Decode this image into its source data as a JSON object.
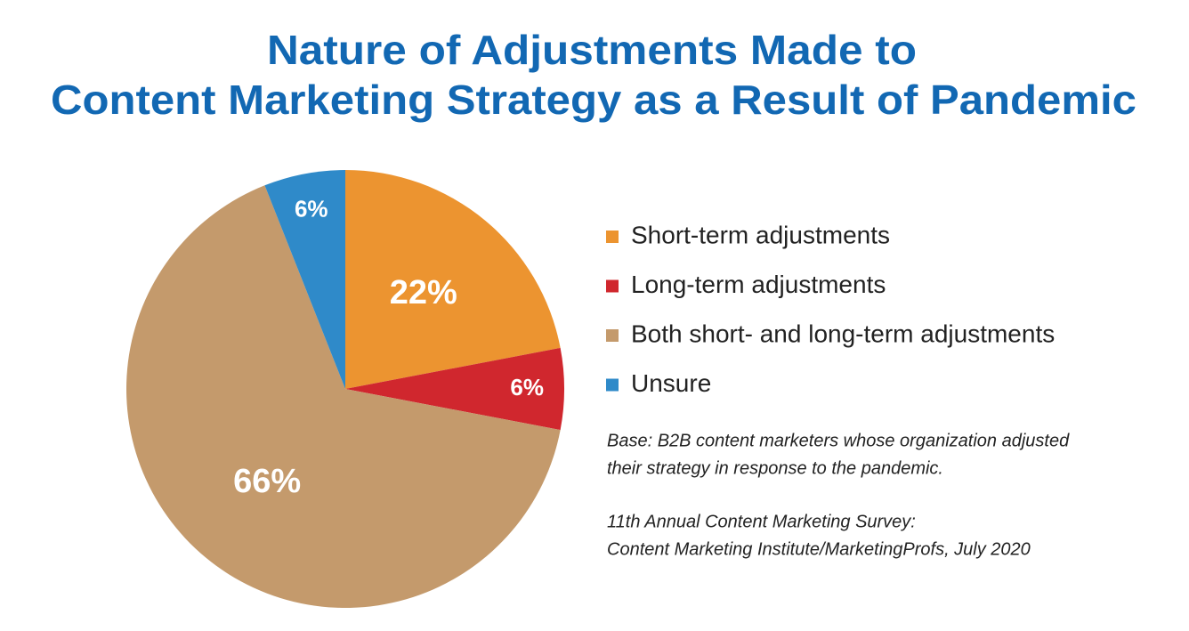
{
  "chart_data": {
    "type": "pie",
    "title": [
      "Nature of Adjustments Made to",
      "Content Marketing Strategy as a Result of Pandemic"
    ],
    "categories": [
      "Short-term adjustments",
      "Long-term adjustments",
      "Both short- and long-term adjustments",
      "Unsure"
    ],
    "values": [
      22,
      6,
      66,
      6
    ],
    "value_labels": [
      "22%",
      "6%",
      "66%",
      "6%"
    ],
    "colors": [
      "#ec9430",
      "#d0272e",
      "#c49a6c",
      "#2f8ac9"
    ],
    "legend": "right",
    "notes": [
      "Base: B2B content marketers whose organization adjusted",
      "their strategy in response to the pandemic.",
      "11th Annual Content Marketing Survey:",
      "Content Marketing Institute/MarketingProfs, July 2020"
    ]
  }
}
